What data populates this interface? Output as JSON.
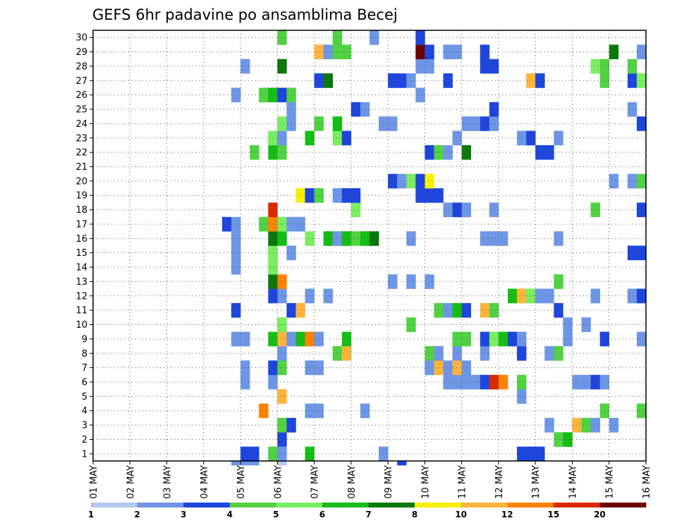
{
  "chart_data": {
    "type": "heatmap",
    "title": "GEFS 6hr padavine po ansamblima Becej",
    "xlabel": "",
    "ylabel": "",
    "x_ticks": [
      "01 MAY",
      "02 MAY",
      "03 MAY",
      "04 MAY",
      "05 MAY",
      "06 MAY",
      "07 MAY",
      "08 MAY",
      "09 MAY",
      "10 MAY",
      "11 MAY",
      "12 MAY",
      "13 MAY",
      "14 MAY",
      "15 MAY",
      "16 MAY"
    ],
    "y_ticks": [
      "1",
      "2",
      "3",
      "4",
      "5",
      "6",
      "7",
      "8",
      "9",
      "10",
      "11",
      "12",
      "13",
      "14",
      "15",
      "16",
      "17",
      "18",
      "19",
      "20",
      "21",
      "22",
      "23",
      "24",
      "25",
      "26",
      "27",
      "28",
      "29",
      "30"
    ],
    "time_steps_per_day": 4,
    "xlim": [
      0,
      60
    ],
    "ylim": [
      0.5,
      30.5
    ],
    "grid": true,
    "legend": {
      "position": "bottom",
      "labels": [
        "1",
        "2",
        "3",
        "4",
        "5",
        "6",
        "7",
        "8",
        "10",
        "12",
        "15",
        "20"
      ],
      "colors": [
        "#b4c8f0",
        "#6e96e6",
        "#1e46dc",
        "#50d242",
        "#78ee60",
        "#14be14",
        "#0a780a",
        "#f8f000",
        "#ffb43c",
        "#ff8200",
        "#dc2800",
        "#6e0000"
      ]
    },
    "cells": [
      [
        16,
        1,
        2
      ],
      [
        17,
        1,
        2
      ],
      [
        19,
        1,
        3
      ],
      [
        23,
        1,
        5
      ],
      [
        31,
        1,
        1
      ],
      [
        46,
        1,
        2
      ],
      [
        47,
        1,
        2
      ],
      [
        48,
        1,
        2
      ],
      [
        20,
        2,
        2
      ],
      [
        20,
        1,
        1
      ],
      [
        20,
        0,
        0
      ],
      [
        50,
        2,
        3
      ],
      [
        51,
        2,
        5
      ],
      [
        20,
        3,
        3
      ],
      [
        21,
        3,
        2
      ],
      [
        49,
        3,
        1
      ],
      [
        52,
        3,
        8
      ],
      [
        53,
        3,
        3
      ],
      [
        54,
        3,
        1
      ],
      [
        56,
        3,
        1
      ],
      [
        18,
        4,
        9
      ],
      [
        23,
        4,
        1
      ],
      [
        24,
        4,
        1
      ],
      [
        29,
        4,
        1
      ],
      [
        55,
        4,
        3
      ],
      [
        59,
        4,
        3
      ],
      [
        20,
        5,
        8
      ],
      [
        46,
        5,
        1
      ],
      [
        16,
        6,
        1
      ],
      [
        19,
        6,
        1
      ],
      [
        38,
        6,
        1
      ],
      [
        39,
        6,
        1
      ],
      [
        40,
        6,
        1
      ],
      [
        41,
        6,
        1
      ],
      [
        42,
        6,
        2
      ],
      [
        43,
        6,
        10
      ],
      [
        44,
        6,
        9
      ],
      [
        46,
        6,
        3
      ],
      [
        52,
        6,
        1
      ],
      [
        53,
        6,
        1
      ],
      [
        54,
        6,
        2
      ],
      [
        55,
        6,
        1
      ],
      [
        16,
        7,
        1
      ],
      [
        19,
        7,
        2
      ],
      [
        20,
        7,
        3
      ],
      [
        23,
        7,
        1
      ],
      [
        24,
        7,
        1
      ],
      [
        36,
        7,
        1
      ],
      [
        37,
        7,
        8
      ],
      [
        38,
        7,
        1
      ],
      [
        39,
        7,
        8
      ],
      [
        40,
        7,
        1
      ],
      [
        20,
        8,
        1
      ],
      [
        26,
        8,
        3
      ],
      [
        27,
        8,
        8
      ],
      [
        36,
        8,
        3
      ],
      [
        37,
        8,
        1
      ],
      [
        39,
        8,
        1
      ],
      [
        42,
        8,
        1
      ],
      [
        46,
        8,
        2
      ],
      [
        49,
        8,
        1
      ],
      [
        50,
        8,
        3
      ],
      [
        15,
        9,
        1
      ],
      [
        16,
        9,
        1
      ],
      [
        19,
        9,
        5
      ],
      [
        20,
        9,
        8
      ],
      [
        21,
        9,
        1
      ],
      [
        22,
        9,
        5
      ],
      [
        23,
        9,
        9
      ],
      [
        24,
        9,
        1
      ],
      [
        27,
        9,
        5
      ],
      [
        39,
        9,
        3
      ],
      [
        40,
        9,
        3
      ],
      [
        42,
        9,
        2
      ],
      [
        43,
        9,
        4
      ],
      [
        44,
        9,
        5
      ],
      [
        45,
        9,
        2
      ],
      [
        46,
        9,
        1
      ],
      [
        51,
        9,
        1
      ],
      [
        55,
        9,
        2
      ],
      [
        59,
        9,
        1
      ],
      [
        20,
        10,
        4
      ],
      [
        34,
        10,
        3
      ],
      [
        51,
        10,
        1
      ],
      [
        53,
        10,
        1
      ],
      [
        15,
        11,
        2
      ],
      [
        21,
        11,
        2
      ],
      [
        22,
        11,
        8
      ],
      [
        37,
        11,
        3
      ],
      [
        38,
        11,
        1
      ],
      [
        39,
        11,
        5
      ],
      [
        40,
        11,
        2
      ],
      [
        42,
        11,
        8
      ],
      [
        43,
        11,
        3
      ],
      [
        50,
        11,
        2
      ],
      [
        19,
        12,
        2
      ],
      [
        20,
        12,
        1
      ],
      [
        23,
        12,
        1
      ],
      [
        25,
        12,
        1
      ],
      [
        45,
        12,
        5
      ],
      [
        46,
        12,
        8
      ],
      [
        47,
        12,
        4
      ],
      [
        48,
        12,
        1
      ],
      [
        49,
        12,
        1
      ],
      [
        54,
        12,
        1
      ],
      [
        58,
        12,
        1
      ],
      [
        59,
        12,
        2
      ],
      [
        19,
        13,
        6
      ],
      [
        20,
        13,
        9
      ],
      [
        32,
        13,
        1
      ],
      [
        34,
        13,
        1
      ],
      [
        36,
        13,
        1
      ],
      [
        50,
        13,
        3
      ],
      [
        19,
        14,
        4
      ],
      [
        15,
        14,
        1
      ],
      [
        15,
        15,
        1
      ],
      [
        19,
        15,
        4
      ],
      [
        21,
        15,
        1
      ],
      [
        58,
        15,
        2
      ],
      [
        59,
        15,
        2
      ],
      [
        15,
        16,
        1
      ],
      [
        19,
        16,
        6
      ],
      [
        20,
        16,
        5
      ],
      [
        23,
        16,
        4
      ],
      [
        25,
        16,
        5
      ],
      [
        26,
        16,
        1
      ],
      [
        27,
        16,
        5
      ],
      [
        28,
        16,
        3
      ],
      [
        29,
        16,
        5
      ],
      [
        30,
        16,
        6
      ],
      [
        34,
        16,
        1
      ],
      [
        42,
        16,
        1
      ],
      [
        43,
        16,
        1
      ],
      [
        44,
        16,
        1
      ],
      [
        50,
        16,
        1
      ],
      [
        14,
        17,
        2
      ],
      [
        15,
        17,
        1
      ],
      [
        18,
        17,
        3
      ],
      [
        19,
        17,
        9
      ],
      [
        20,
        17,
        4
      ],
      [
        21,
        17,
        1
      ],
      [
        22,
        17,
        1
      ],
      [
        19,
        18,
        10
      ],
      [
        28,
        18,
        4
      ],
      [
        38,
        18,
        1
      ],
      [
        39,
        18,
        2
      ],
      [
        40,
        18,
        1
      ],
      [
        43,
        18,
        1
      ],
      [
        54,
        18,
        3
      ],
      [
        59,
        18,
        2
      ],
      [
        22,
        19,
        7
      ],
      [
        23,
        19,
        2
      ],
      [
        24,
        19,
        3
      ],
      [
        26,
        19,
        1
      ],
      [
        27,
        19,
        2
      ],
      [
        28,
        19,
        2
      ],
      [
        35,
        19,
        2
      ],
      [
        36,
        19,
        2
      ],
      [
        37,
        19,
        2
      ],
      [
        32,
        20,
        2
      ],
      [
        33,
        20,
        1
      ],
      [
        34,
        20,
        4
      ],
      [
        35,
        20,
        2
      ],
      [
        36,
        20,
        7
      ],
      [
        56,
        20,
        1
      ],
      [
        58,
        20,
        1
      ],
      [
        59,
        20,
        3
      ],
      [
        17,
        22,
        3
      ],
      [
        19,
        22,
        5
      ],
      [
        20,
        22,
        3
      ],
      [
        36,
        22,
        2
      ],
      [
        37,
        22,
        3
      ],
      [
        38,
        22,
        1
      ],
      [
        40,
        22,
        6
      ],
      [
        48,
        22,
        2
      ],
      [
        49,
        22,
        2
      ],
      [
        19,
        23,
        4
      ],
      [
        20,
        23,
        1
      ],
      [
        23,
        23,
        5
      ],
      [
        26,
        23,
        4
      ],
      [
        27,
        23,
        2
      ],
      [
        39,
        23,
        1
      ],
      [
        46,
        23,
        1
      ],
      [
        47,
        23,
        2
      ],
      [
        50,
        23,
        1
      ],
      [
        20,
        24,
        4
      ],
      [
        21,
        24,
        1
      ],
      [
        24,
        24,
        3
      ],
      [
        26,
        24,
        5
      ],
      [
        31,
        24,
        1
      ],
      [
        32,
        24,
        1
      ],
      [
        40,
        24,
        1
      ],
      [
        41,
        24,
        1
      ],
      [
        42,
        24,
        2
      ],
      [
        43,
        24,
        1
      ],
      [
        59,
        24,
        2
      ],
      [
        21,
        25,
        1
      ],
      [
        28,
        25,
        2
      ],
      [
        29,
        25,
        1
      ],
      [
        43,
        25,
        2
      ],
      [
        58,
        25,
        1
      ],
      [
        15,
        26,
        1
      ],
      [
        18,
        26,
        3
      ],
      [
        19,
        26,
        5
      ],
      [
        20,
        26,
        2
      ],
      [
        21,
        26,
        3
      ],
      [
        35,
        26,
        1
      ],
      [
        24,
        27,
        2
      ],
      [
        25,
        27,
        6
      ],
      [
        32,
        27,
        2
      ],
      [
        33,
        27,
        2
      ],
      [
        34,
        27,
        1
      ],
      [
        38,
        27,
        2
      ],
      [
        47,
        27,
        8
      ],
      [
        48,
        27,
        2
      ],
      [
        55,
        27,
        3
      ],
      [
        58,
        27,
        2
      ],
      [
        59,
        27,
        4
      ],
      [
        16,
        28,
        1
      ],
      [
        20,
        28,
        6
      ],
      [
        35,
        28,
        1
      ],
      [
        36,
        28,
        1
      ],
      [
        42,
        28,
        2
      ],
      [
        43,
        28,
        2
      ],
      [
        54,
        28,
        4
      ],
      [
        55,
        28,
        3
      ],
      [
        58,
        28,
        3
      ],
      [
        24,
        29,
        8
      ],
      [
        25,
        29,
        1
      ],
      [
        26,
        29,
        3
      ],
      [
        27,
        29,
        3
      ],
      [
        35,
        29,
        11
      ],
      [
        36,
        29,
        2
      ],
      [
        38,
        29,
        1
      ],
      [
        39,
        29,
        1
      ],
      [
        42,
        29,
        2
      ],
      [
        56,
        29,
        6
      ],
      [
        59,
        29,
        1
      ],
      [
        20,
        30,
        3
      ],
      [
        26,
        30,
        3
      ],
      [
        30,
        30,
        1
      ],
      [
        35,
        30,
        2
      ],
      [
        15,
        0,
        1
      ],
      [
        16,
        0,
        1
      ],
      [
        17,
        0,
        1
      ],
      [
        33,
        0,
        2
      ]
    ]
  }
}
